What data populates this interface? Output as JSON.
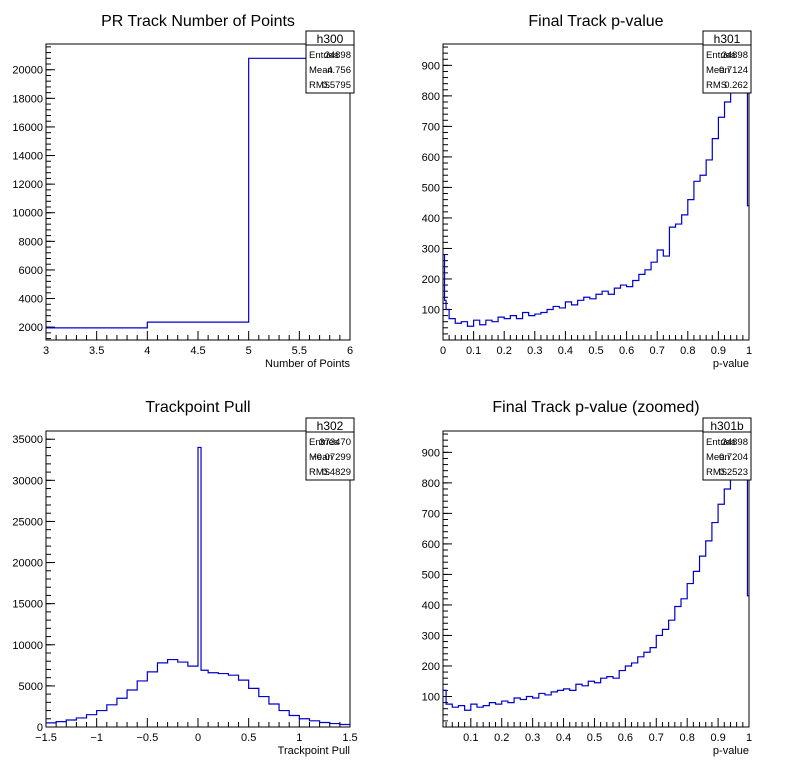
{
  "chart_data": [
    {
      "type": "histogram",
      "title": "PR Track Number of Points",
      "xlabel": "Number of Points",
      "ylabel": "",
      "xlim": [
        3,
        6
      ],
      "ylim": [
        1100,
        21800
      ],
      "xticks": [
        "3",
        "3.5",
        "4",
        "4.5",
        "5",
        "5.5",
        "6"
      ],
      "yticks": [
        "2000",
        "4000",
        "6000",
        "8000",
        "10000",
        "12000",
        "14000",
        "16000",
        "18000",
        "20000"
      ],
      "bins": [
        [
          3,
          4,
          1950
        ],
        [
          4,
          5,
          2350
        ],
        [
          5,
          6,
          20800
        ]
      ],
      "stats": {
        "name": "h300",
        "rows": [
          {
            "label": "Entries",
            "value": "24898"
          },
          {
            "label": "Mean",
            "value": "4.756"
          },
          {
            "label": "RMS",
            "value": "0.5795"
          }
        ]
      }
    },
    {
      "type": "histogram",
      "title": "Final Track p-value",
      "xlabel": "p-value",
      "ylabel": "",
      "xlim": [
        0,
        1
      ],
      "ylim": [
        0,
        970
      ],
      "xticks": [
        "0",
        "0.1",
        "0.2",
        "0.3",
        "0.4",
        "0.5",
        "0.6",
        "0.7",
        "0.8",
        "0.9",
        "1"
      ],
      "yticks": [
        "100",
        "200",
        "300",
        "400",
        "500",
        "600",
        "700",
        "800",
        "900"
      ],
      "bins": [
        [
          0,
          0.005,
          280
        ],
        [
          0.005,
          0.01,
          130
        ],
        [
          0.01,
          0.02,
          100
        ],
        [
          0.02,
          0.04,
          70
        ],
        [
          0.04,
          0.06,
          55
        ],
        [
          0.06,
          0.08,
          60
        ],
        [
          0.08,
          0.1,
          45
        ],
        [
          0.1,
          0.12,
          65
        ],
        [
          0.12,
          0.14,
          50
        ],
        [
          0.14,
          0.16,
          65
        ],
        [
          0.16,
          0.18,
          60
        ],
        [
          0.18,
          0.2,
          75
        ],
        [
          0.2,
          0.22,
          70
        ],
        [
          0.22,
          0.24,
          80
        ],
        [
          0.24,
          0.26,
          70
        ],
        [
          0.26,
          0.28,
          90
        ],
        [
          0.28,
          0.3,
          80
        ],
        [
          0.3,
          0.32,
          85
        ],
        [
          0.32,
          0.34,
          90
        ],
        [
          0.34,
          0.36,
          100
        ],
        [
          0.36,
          0.38,
          110
        ],
        [
          0.38,
          0.4,
          105
        ],
        [
          0.4,
          0.42,
          125
        ],
        [
          0.42,
          0.44,
          115
        ],
        [
          0.44,
          0.46,
          130
        ],
        [
          0.46,
          0.48,
          140
        ],
        [
          0.48,
          0.5,
          135
        ],
        [
          0.5,
          0.52,
          150
        ],
        [
          0.52,
          0.54,
          160
        ],
        [
          0.54,
          0.56,
          150
        ],
        [
          0.56,
          0.58,
          170
        ],
        [
          0.58,
          0.6,
          180
        ],
        [
          0.6,
          0.62,
          175
        ],
        [
          0.62,
          0.64,
          195
        ],
        [
          0.64,
          0.66,
          215
        ],
        [
          0.66,
          0.68,
          230
        ],
        [
          0.68,
          0.7,
          255
        ],
        [
          0.7,
          0.72,
          295
        ],
        [
          0.72,
          0.74,
          275
        ],
        [
          0.74,
          0.76,
          370
        ],
        [
          0.76,
          0.78,
          380
        ],
        [
          0.78,
          0.8,
          410
        ],
        [
          0.8,
          0.82,
          460
        ],
        [
          0.82,
          0.84,
          520
        ],
        [
          0.84,
          0.86,
          540
        ],
        [
          0.86,
          0.88,
          590
        ],
        [
          0.88,
          0.9,
          660
        ],
        [
          0.9,
          0.92,
          730
        ],
        [
          0.92,
          0.94,
          780
        ],
        [
          0.94,
          0.96,
          840
        ],
        [
          0.96,
          0.98,
          950
        ],
        [
          0.98,
          0.995,
          830
        ],
        [
          0.995,
          1.0,
          440
        ]
      ],
      "stats": {
        "name": "h301",
        "rows": [
          {
            "label": "Entries",
            "value": "24898"
          },
          {
            "label": "Mean",
            "value": "0.7124"
          },
          {
            "label": "RMS",
            "value": "0.262"
          }
        ]
      }
    },
    {
      "type": "histogram",
      "title": "Trackpoint Pull",
      "xlabel": "Trackpoint Pull",
      "ylabel": "",
      "xlim": [
        -1.5,
        1.5
      ],
      "ylim": [
        0,
        36000
      ],
      "xticks": [
        "−1.5",
        "−1",
        "−0.5",
        "0",
        "0.5",
        "1",
        "1.5"
      ],
      "yticks": [
        "0",
        "5000",
        "10000",
        "15000",
        "20000",
        "25000",
        "30000",
        "35000"
      ],
      "bins": [
        [
          -1.5,
          -1.4,
          500
        ],
        [
          -1.4,
          -1.3,
          650
        ],
        [
          -1.3,
          -1.2,
          850
        ],
        [
          -1.2,
          -1.1,
          1100
        ],
        [
          -1.1,
          -1.0,
          1500
        ],
        [
          -1.0,
          -0.9,
          2000
        ],
        [
          -0.9,
          -0.8,
          2700
        ],
        [
          -0.8,
          -0.7,
          3500
        ],
        [
          -0.7,
          -0.6,
          4500
        ],
        [
          -0.6,
          -0.5,
          5600
        ],
        [
          -0.5,
          -0.4,
          6700
        ],
        [
          -0.4,
          -0.3,
          7800
        ],
        [
          -0.3,
          -0.2,
          8200
        ],
        [
          -0.2,
          -0.1,
          7900
        ],
        [
          -0.1,
          0.0,
          7400
        ],
        [
          0.0,
          0.03,
          34000
        ],
        [
          0.03,
          0.1,
          6900
        ],
        [
          0.1,
          0.2,
          6600
        ],
        [
          0.2,
          0.3,
          6500
        ],
        [
          0.3,
          0.4,
          6300
        ],
        [
          0.4,
          0.5,
          5700
        ],
        [
          0.5,
          0.6,
          4700
        ],
        [
          0.6,
          0.7,
          3700
        ],
        [
          0.7,
          0.8,
          2800
        ],
        [
          0.8,
          0.9,
          2000
        ],
        [
          0.9,
          1.0,
          1400
        ],
        [
          1.0,
          1.1,
          1000
        ],
        [
          1.1,
          1.2,
          750
        ],
        [
          1.2,
          1.3,
          550
        ],
        [
          1.3,
          1.4,
          420
        ],
        [
          1.4,
          1.5,
          300
        ]
      ],
      "stats": {
        "name": "h302",
        "rows": [
          {
            "label": "Entries",
            "value": "373470"
          },
          {
            "label": "Mean",
            "value": "−0.07299"
          },
          {
            "label": "RMS",
            "value": "0.4829"
          }
        ]
      }
    },
    {
      "type": "histogram",
      "title": "Final Track p-value (zoomed)",
      "xlabel": "p-value",
      "ylabel": "",
      "xlim": [
        0.01,
        1
      ],
      "ylim": [
        0,
        970
      ],
      "xticks": [
        "0.1",
        "0.2",
        "0.3",
        "0.4",
        "0.5",
        "0.6",
        "0.7",
        "0.8",
        "0.9",
        "1"
      ],
      "yticks": [
        "100",
        "200",
        "300",
        "400",
        "500",
        "600",
        "700",
        "800",
        "900"
      ],
      "bins": [
        [
          0.01,
          0.02,
          120
        ],
        [
          0.02,
          0.04,
          75
        ],
        [
          0.04,
          0.06,
          65
        ],
        [
          0.06,
          0.08,
          70
        ],
        [
          0.08,
          0.1,
          55
        ],
        [
          0.1,
          0.12,
          75
        ],
        [
          0.12,
          0.14,
          65
        ],
        [
          0.14,
          0.16,
          70
        ],
        [
          0.16,
          0.18,
          80
        ],
        [
          0.18,
          0.2,
          75
        ],
        [
          0.2,
          0.22,
          85
        ],
        [
          0.22,
          0.24,
          80
        ],
        [
          0.24,
          0.26,
          95
        ],
        [
          0.26,
          0.28,
          90
        ],
        [
          0.28,
          0.3,
          100
        ],
        [
          0.3,
          0.32,
          95
        ],
        [
          0.32,
          0.34,
          110
        ],
        [
          0.34,
          0.36,
          105
        ],
        [
          0.36,
          0.38,
          115
        ],
        [
          0.38,
          0.4,
          120
        ],
        [
          0.4,
          0.42,
          125
        ],
        [
          0.42,
          0.44,
          120
        ],
        [
          0.44,
          0.46,
          140
        ],
        [
          0.46,
          0.48,
          135
        ],
        [
          0.48,
          0.5,
          150
        ],
        [
          0.5,
          0.52,
          145
        ],
        [
          0.52,
          0.54,
          160
        ],
        [
          0.54,
          0.56,
          165
        ],
        [
          0.56,
          0.58,
          160
        ],
        [
          0.58,
          0.6,
          185
        ],
        [
          0.6,
          0.62,
          200
        ],
        [
          0.62,
          0.64,
          210
        ],
        [
          0.64,
          0.66,
          230
        ],
        [
          0.66,
          0.68,
          245
        ],
        [
          0.68,
          0.7,
          260
        ],
        [
          0.7,
          0.72,
          300
        ],
        [
          0.72,
          0.74,
          320
        ],
        [
          0.74,
          0.76,
          350
        ],
        [
          0.76,
          0.78,
          395
        ],
        [
          0.78,
          0.8,
          420
        ],
        [
          0.8,
          0.82,
          470
        ],
        [
          0.82,
          0.84,
          510
        ],
        [
          0.84,
          0.86,
          560
        ],
        [
          0.86,
          0.88,
          610
        ],
        [
          0.88,
          0.9,
          670
        ],
        [
          0.9,
          0.92,
          730
        ],
        [
          0.92,
          0.94,
          780
        ],
        [
          0.94,
          0.96,
          845
        ],
        [
          0.96,
          0.98,
          950
        ],
        [
          0.98,
          0.995,
          860
        ],
        [
          0.995,
          1.0,
          430
        ]
      ],
      "stats": {
        "name": "h301b",
        "rows": [
          {
            "label": "Entries",
            "value": "24898"
          },
          {
            "label": "Mean",
            "value": "0.7204"
          },
          {
            "label": "RMS",
            "value": "0.2523"
          }
        ]
      }
    }
  ],
  "colors": {
    "line": "#0000cc",
    "axis": "#000000",
    "background": "#ffffff"
  }
}
